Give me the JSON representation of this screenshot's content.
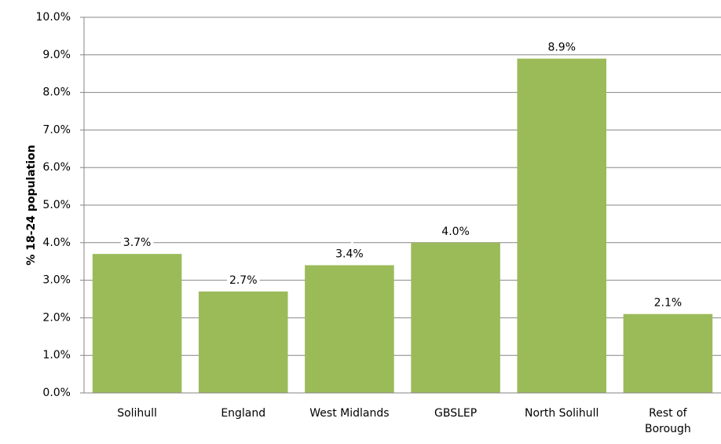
{
  "chart_data": {
    "type": "bar",
    "y_label": "% 18-24 population",
    "categories": [
      "Solihull",
      "England",
      "West Midlands",
      "GBSLEP",
      "North Solihull",
      "Rest of Borough"
    ],
    "values": [
      3.7,
      2.7,
      3.4,
      4.0,
      8.9,
      2.1
    ],
    "value_labels": [
      "3.7%",
      "2.7%",
      "3.4%",
      "4.0%",
      "8.9%",
      "2.1%"
    ],
    "color": "#9bbb59",
    "ylim": [
      0,
      10
    ],
    "yticks": [
      {
        "value": 0,
        "label": "0.0%"
      },
      {
        "value": 1,
        "label": "1.0%"
      },
      {
        "value": 2,
        "label": "2.0%"
      },
      {
        "value": 3,
        "label": "3.0%"
      },
      {
        "value": 4,
        "label": "4.0%"
      },
      {
        "value": 5,
        "label": "5.0%"
      },
      {
        "value": 6,
        "label": "6.0%"
      },
      {
        "value": 7,
        "label": "7.0%"
      },
      {
        "value": 8,
        "label": "8.0%"
      },
      {
        "value": 9,
        "label": "9.0%"
      },
      {
        "value": 10,
        "label": "10.0%"
      }
    ],
    "grid": true
  }
}
